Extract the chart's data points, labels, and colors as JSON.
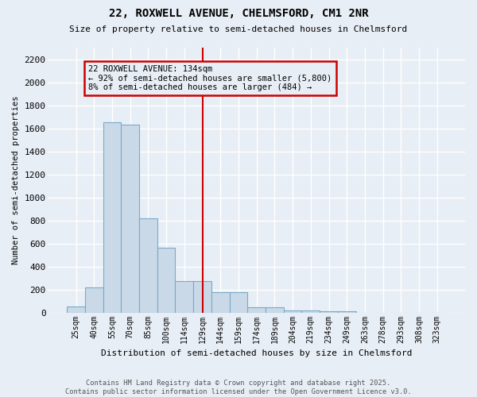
{
  "title": "22, ROXWELL AVENUE, CHELMSFORD, CM1 2NR",
  "subtitle": "Size of property relative to semi-detached houses in Chelmsford",
  "xlabel": "Distribution of semi-detached houses by size in Chelmsford",
  "ylabel": "Number of semi-detached properties",
  "categories": [
    "25sqm",
    "40sqm",
    "55sqm",
    "70sqm",
    "85sqm",
    "100sqm",
    "114sqm",
    "129sqm",
    "144sqm",
    "159sqm",
    "174sqm",
    "189sqm",
    "204sqm",
    "219sqm",
    "234sqm",
    "249sqm",
    "263sqm",
    "278sqm",
    "293sqm",
    "308sqm",
    "323sqm"
  ],
  "values": [
    50,
    220,
    1650,
    1630,
    820,
    560,
    270,
    270,
    180,
    180,
    45,
    45,
    20,
    20,
    10,
    10,
    0,
    0,
    0,
    0,
    0
  ],
  "bar_color": "#c9d9e8",
  "bar_edge_color": "#7aaac8",
  "vline_x_index": 7,
  "vline_color": "#cc0000",
  "ylim_max": 2300,
  "yticks": [
    0,
    200,
    400,
    600,
    800,
    1000,
    1200,
    1400,
    1600,
    1800,
    2000,
    2200
  ],
  "bg_color": "#e8eef5",
  "grid_color": "#c8d4e0",
  "annotation_text": "22 ROXWELL AVENUE: 134sqm\n← 92% of semi-detached houses are smaller (5,800)\n8% of semi-detached houses are larger (484) →",
  "annotation_box_edgecolor": "#cc0000",
  "footer1": "Contains HM Land Registry data © Crown copyright and database right 2025.",
  "footer2": "Contains public sector information licensed under the Open Government Licence v3.0."
}
